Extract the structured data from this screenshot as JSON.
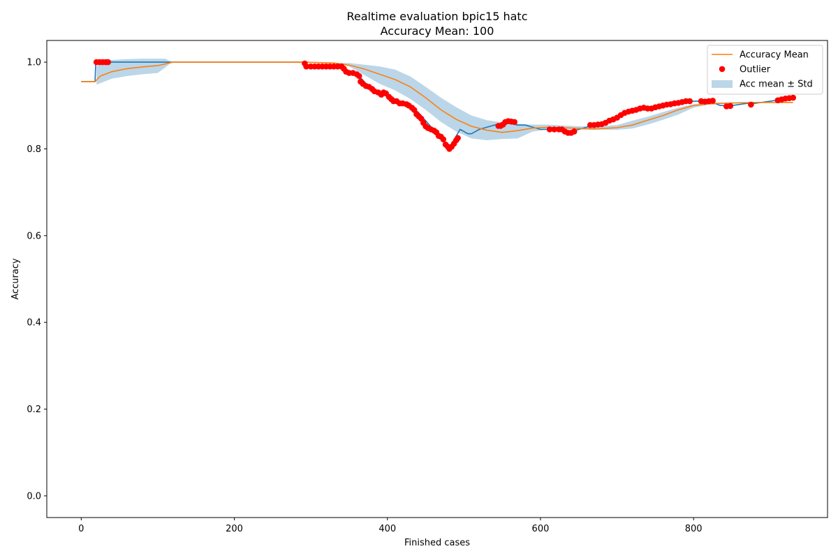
{
  "chart_data": {
    "type": "line",
    "title": "Realtime evaluation bpic15 hatc",
    "subtitle": "Accuracy Mean: 100",
    "xlabel": "Finished cases",
    "ylabel": "Accuracy",
    "xlim": [
      -45,
      975
    ],
    "ylim": [
      -0.05,
      1.05
    ],
    "xticks": [
      0,
      200,
      400,
      600,
      800
    ],
    "yticks": [
      0.0,
      0.2,
      0.4,
      0.6,
      0.8,
      1.0
    ],
    "xtick_labels": [
      "0",
      "200",
      "400",
      "600",
      "800"
    ],
    "ytick_labels": [
      "0.0",
      "0.2",
      "0.4",
      "0.6",
      "0.8",
      "1.0"
    ],
    "grid": false,
    "legend_position": "top-right",
    "legend": [
      {
        "label": "Accuracy Mean",
        "kind": "line",
        "color": "#ff7f0e"
      },
      {
        "label": "Outlier",
        "kind": "marker",
        "color": "#ff0000"
      },
      {
        "label": "Acc mean ± Std",
        "kind": "patch",
        "color": "#1f77b4"
      }
    ],
    "series": [
      {
        "kind": "line",
        "color": "#1f77b4",
        "points": [
          [
            0,
            0.955
          ],
          [
            18,
            0.955
          ],
          [
            19,
            1.0
          ],
          [
            100,
            1.0
          ],
          [
            120,
            1.0
          ],
          [
            290,
            1.0
          ],
          [
            300,
            0.99
          ],
          [
            340,
            0.99
          ],
          [
            350,
            0.975
          ],
          [
            362,
            0.97
          ],
          [
            380,
            0.935
          ],
          [
            400,
            0.925
          ],
          [
            420,
            0.905
          ],
          [
            440,
            0.885
          ],
          [
            460,
            0.845
          ],
          [
            470,
            0.83
          ],
          [
            480,
            0.8
          ],
          [
            490,
            0.83
          ],
          [
            495,
            0.845
          ],
          [
            500,
            0.84
          ],
          [
            505,
            0.835
          ],
          [
            510,
            0.835
          ],
          [
            515,
            0.84
          ],
          [
            520,
            0.845
          ],
          [
            530,
            0.85
          ],
          [
            540,
            0.855
          ],
          [
            550,
            0.86
          ],
          [
            560,
            0.86
          ],
          [
            570,
            0.855
          ],
          [
            580,
            0.855
          ],
          [
            590,
            0.85
          ],
          [
            600,
            0.845
          ],
          [
            610,
            0.845
          ],
          [
            620,
            0.845
          ],
          [
            630,
            0.84
          ],
          [
            640,
            0.84
          ],
          [
            650,
            0.845
          ],
          [
            660,
            0.85
          ],
          [
            670,
            0.855
          ],
          [
            690,
            0.865
          ],
          [
            710,
            0.885
          ],
          [
            730,
            0.895
          ],
          [
            745,
            0.895
          ],
          [
            760,
            0.9
          ],
          [
            780,
            0.905
          ],
          [
            800,
            0.91
          ],
          [
            820,
            0.91
          ],
          [
            835,
            0.9
          ],
          [
            850,
            0.9
          ],
          [
            870,
            0.905
          ],
          [
            880,
            0.905
          ],
          [
            900,
            0.91
          ],
          [
            920,
            0.915
          ],
          [
            930,
            0.915
          ]
        ]
      },
      {
        "name": "Accuracy Mean",
        "kind": "line",
        "color": "#ff7f0e",
        "points": [
          [
            0,
            0.955
          ],
          [
            18,
            0.955
          ],
          [
            25,
            0.968
          ],
          [
            40,
            0.978
          ],
          [
            60,
            0.985
          ],
          [
            80,
            0.989
          ],
          [
            100,
            0.992
          ],
          [
            115,
            0.998
          ],
          [
            120,
            1.0
          ],
          [
            290,
            1.0
          ],
          [
            330,
            0.998
          ],
          [
            350,
            0.993
          ],
          [
            370,
            0.984
          ],
          [
            390,
            0.972
          ],
          [
            410,
            0.96
          ],
          [
            430,
            0.943
          ],
          [
            450,
            0.918
          ],
          [
            470,
            0.89
          ],
          [
            490,
            0.868
          ],
          [
            510,
            0.852
          ],
          [
            530,
            0.843
          ],
          [
            550,
            0.838
          ],
          [
            570,
            0.842
          ],
          [
            590,
            0.848
          ],
          [
            610,
            0.85
          ],
          [
            640,
            0.848
          ],
          [
            670,
            0.846
          ],
          [
            700,
            0.849
          ],
          [
            720,
            0.855
          ],
          [
            740,
            0.866
          ],
          [
            760,
            0.877
          ],
          [
            780,
            0.89
          ],
          [
            800,
            0.9
          ],
          [
            820,
            0.904
          ],
          [
            840,
            0.905
          ],
          [
            860,
            0.906
          ],
          [
            880,
            0.907
          ],
          [
            900,
            0.907
          ],
          [
            930,
            0.907
          ]
        ]
      }
    ],
    "band": {
      "name": "Acc mean ± Std",
      "color": "#1f77b4",
      "opacity": 0.3,
      "points": [
        [
          20,
          0.948,
          0.99
        ],
        [
          30,
          0.955,
          1.003
        ],
        [
          40,
          0.962,
          1.005
        ],
        [
          60,
          0.968,
          1.007
        ],
        [
          80,
          0.972,
          1.008
        ],
        [
          100,
          0.975,
          1.008
        ],
        [
          110,
          0.988,
          1.008
        ],
        [
          118,
          1.0,
          1.0
        ],
        [
          290,
          1.0,
          1.0
        ],
        [
          330,
          0.998,
          0.998
        ],
        [
          350,
          0.99,
          0.998
        ],
        [
          370,
          0.97,
          0.994
        ],
        [
          390,
          0.95,
          0.99
        ],
        [
          410,
          0.935,
          0.983
        ],
        [
          430,
          0.915,
          0.967
        ],
        [
          450,
          0.89,
          0.943
        ],
        [
          470,
          0.862,
          0.918
        ],
        [
          490,
          0.84,
          0.896
        ],
        [
          510,
          0.824,
          0.877
        ],
        [
          530,
          0.82,
          0.866
        ],
        [
          550,
          0.823,
          0.861
        ],
        [
          570,
          0.824,
          0.858
        ],
        [
          590,
          0.84,
          0.856
        ],
        [
          610,
          0.845,
          0.856
        ],
        [
          640,
          0.845,
          0.853
        ],
        [
          670,
          0.844,
          0.851
        ],
        [
          700,
          0.844,
          0.855
        ],
        [
          720,
          0.847,
          0.865
        ],
        [
          740,
          0.856,
          0.874
        ],
        [
          760,
          0.867,
          0.885
        ],
        [
          780,
          0.879,
          0.895
        ],
        [
          800,
          0.895,
          0.903
        ],
        [
          820,
          0.902,
          0.907
        ],
        [
          840,
          0.904,
          0.907
        ],
        [
          860,
          0.906,
          0.908
        ],
        [
          880,
          0.906,
          0.908
        ],
        [
          930,
          0.906,
          0.908
        ]
      ]
    },
    "outliers": {
      "name": "Outlier",
      "color": "#ff0000",
      "points": [
        [
          20,
          1.0
        ],
        [
          24,
          1.0
        ],
        [
          28,
          1.0
        ],
        [
          32,
          1.0
        ],
        [
          35,
          1.0
        ],
        [
          292,
          0.997
        ],
        [
          294,
          0.99
        ],
        [
          300,
          0.99
        ],
        [
          305,
          0.99
        ],
        [
          310,
          0.99
        ],
        [
          315,
          0.99
        ],
        [
          320,
          0.99
        ],
        [
          325,
          0.99
        ],
        [
          330,
          0.99
        ],
        [
          335,
          0.99
        ],
        [
          340,
          0.99
        ],
        [
          343,
          0.985
        ],
        [
          346,
          0.978
        ],
        [
          350,
          0.975
        ],
        [
          355,
          0.975
        ],
        [
          360,
          0.972
        ],
        [
          363,
          0.968
        ],
        [
          365,
          0.955
        ],
        [
          368,
          0.95
        ],
        [
          372,
          0.945
        ],
        [
          376,
          0.943
        ],
        [
          380,
          0.938
        ],
        [
          383,
          0.933
        ],
        [
          388,
          0.93
        ],
        [
          392,
          0.925
        ],
        [
          395,
          0.93
        ],
        [
          398,
          0.928
        ],
        [
          402,
          0.92
        ],
        [
          405,
          0.915
        ],
        [
          408,
          0.91
        ],
        [
          412,
          0.91
        ],
        [
          416,
          0.905
        ],
        [
          420,
          0.905
        ],
        [
          425,
          0.903
        ],
        [
          428,
          0.9
        ],
        [
          432,
          0.895
        ],
        [
          435,
          0.89
        ],
        [
          438,
          0.88
        ],
        [
          441,
          0.875
        ],
        [
          444,
          0.87
        ],
        [
          447,
          0.86
        ],
        [
          450,
          0.852
        ],
        [
          453,
          0.848
        ],
        [
          457,
          0.845
        ],
        [
          461,
          0.842
        ],
        [
          464,
          0.838
        ],
        [
          467,
          0.83
        ],
        [
          470,
          0.828
        ],
        [
          473,
          0.822
        ],
        [
          476,
          0.81
        ],
        [
          479,
          0.805
        ],
        [
          481,
          0.8
        ],
        [
          484,
          0.805
        ],
        [
          487,
          0.812
        ],
        [
          490,
          0.82
        ],
        [
          492,
          0.825
        ],
        [
          545,
          0.853
        ],
        [
          548,
          0.853
        ],
        [
          551,
          0.856
        ],
        [
          554,
          0.862
        ],
        [
          558,
          0.864
        ],
        [
          562,
          0.863
        ],
        [
          566,
          0.862
        ],
        [
          612,
          0.845
        ],
        [
          618,
          0.845
        ],
        [
          624,
          0.845
        ],
        [
          628,
          0.845
        ],
        [
          632,
          0.84
        ],
        [
          636,
          0.837
        ],
        [
          640,
          0.837
        ],
        [
          644,
          0.84
        ],
        [
          665,
          0.855
        ],
        [
          670,
          0.855
        ],
        [
          675,
          0.856
        ],
        [
          680,
          0.857
        ],
        [
          685,
          0.86
        ],
        [
          690,
          0.865
        ],
        [
          695,
          0.868
        ],
        [
          700,
          0.872
        ],
        [
          705,
          0.878
        ],
        [
          710,
          0.883
        ],
        [
          715,
          0.886
        ],
        [
          720,
          0.888
        ],
        [
          725,
          0.89
        ],
        [
          730,
          0.893
        ],
        [
          735,
          0.895
        ],
        [
          740,
          0.893
        ],
        [
          745,
          0.893
        ],
        [
          750,
          0.896
        ],
        [
          755,
          0.898
        ],
        [
          760,
          0.9
        ],
        [
          765,
          0.902
        ],
        [
          770,
          0.903
        ],
        [
          775,
          0.905
        ],
        [
          780,
          0.906
        ],
        [
          785,
          0.908
        ],
        [
          790,
          0.91
        ],
        [
          795,
          0.91
        ],
        [
          810,
          0.91
        ],
        [
          815,
          0.909
        ],
        [
          820,
          0.91
        ],
        [
          825,
          0.911
        ],
        [
          843,
          0.898
        ],
        [
          848,
          0.899
        ],
        [
          875,
          0.902
        ],
        [
          910,
          0.912
        ],
        [
          915,
          0.914
        ],
        [
          920,
          0.916
        ],
        [
          925,
          0.917
        ],
        [
          930,
          0.918
        ]
      ]
    }
  }
}
